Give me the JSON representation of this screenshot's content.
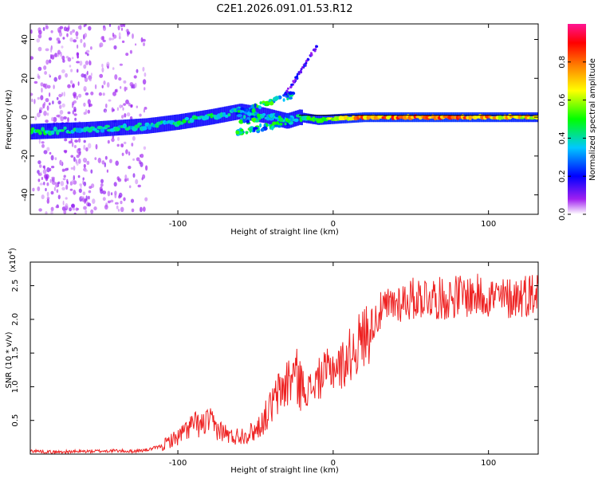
{
  "title": "C2E1.2026.091.01.53.R12",
  "colorbar": {
    "label": "Normalized spectral amplitude",
    "ticks": [
      "0.0",
      "0.2",
      "0.4",
      "0.6",
      "0.8"
    ],
    "range": [
      0,
      1
    ],
    "colors": [
      "#ffffff",
      "#a020f0",
      "#0000ff",
      "#00c8ff",
      "#00ff00",
      "#ffff00",
      "#ff8000",
      "#ff0000",
      "#ff1493"
    ]
  },
  "chart_data": [
    {
      "type": "heatmap",
      "title": "C2E1.2026.091.01.53.R12",
      "xlabel": "Height of straight line (km)",
      "ylabel": "Frequency (Hz)",
      "xlim": [
        -195,
        132
      ],
      "ylim": [
        -50,
        48
      ],
      "xticks": [
        -100,
        0,
        100
      ],
      "xtick_labels": [
        "-100",
        "0",
        "100"
      ],
      "yticks": [
        -40,
        -20,
        0,
        20,
        40
      ],
      "ytick_labels": [
        "-40",
        "-20",
        "0",
        "20",
        "40"
      ],
      "reference_line_hz": 1,
      "ridge": {
        "x": [
          -195,
          -180,
          -160,
          -140,
          -120,
          -100,
          -80,
          -60,
          -45,
          -30,
          -22,
          -10,
          0,
          20,
          50,
          80,
          100,
          132
        ],
        "frequency_hz": [
          -7.5,
          -7,
          -6.5,
          -5.5,
          -4.5,
          -2.5,
          0,
          3,
          1,
          -2,
          0,
          -1.5,
          -1,
          0,
          0,
          0,
          0,
          0
        ],
        "amplitude": [
          0.45,
          0.45,
          0.4,
          0.4,
          0.4,
          0.45,
          0.45,
          0.4,
          0.35,
          0.45,
          0.45,
          0.6,
          0.65,
          0.8,
          0.85,
          0.85,
          0.8,
          0.7
        ]
      }
    },
    {
      "type": "line",
      "xlabel": "Height of straight line (km)",
      "ylabel": "SNR (10 * v/v)",
      "scale_label": "(x10",
      "scale_exponent": "4",
      "xlim": [
        -195,
        132
      ],
      "ylim": [
        0,
        2.85
      ],
      "xticks": [
        -100,
        0,
        100
      ],
      "xtick_labels": [
        "-100",
        "0",
        "100"
      ],
      "yticks": [
        0.5,
        1.0,
        1.5,
        2.0,
        2.5
      ],
      "ytick_labels": [
        "0.5",
        "1.0",
        "1.5",
        "2.0",
        "2.5"
      ],
      "color": "#ee2222",
      "series": [
        {
          "name": "SNR",
          "x": [
            -195,
            -180,
            -160,
            -140,
            -130,
            -120,
            -110,
            -105,
            -100,
            -95,
            -90,
            -85,
            -80,
            -75,
            -70,
            -65,
            -60,
            -55,
            -50,
            -45,
            -40,
            -35,
            -30,
            -25,
            -20,
            -15,
            -10,
            -5,
            0,
            5,
            10,
            20,
            30,
            40,
            50,
            60,
            70,
            80,
            90,
            100,
            110,
            120,
            132
          ],
          "values": [
            0.05,
            0.03,
            0.04,
            0.05,
            0.04,
            0.06,
            0.12,
            0.2,
            0.25,
            0.35,
            0.45,
            0.42,
            0.5,
            0.38,
            0.32,
            0.25,
            0.28,
            0.3,
            0.35,
            0.5,
            0.7,
            0.9,
            1.05,
            1.2,
            1.0,
            0.95,
            1.1,
            1.2,
            1.3,
            1.3,
            1.45,
            1.75,
            2.1,
            2.25,
            2.3,
            2.35,
            2.3,
            2.35,
            2.35,
            2.35,
            2.3,
            2.35,
            2.4
          ]
        }
      ]
    }
  ]
}
